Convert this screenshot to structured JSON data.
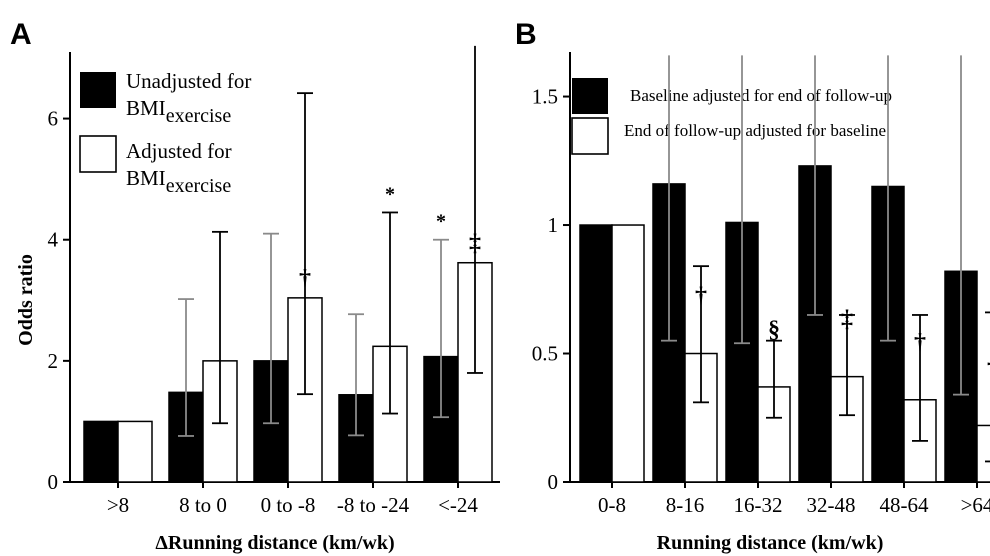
{
  "chart_data": [
    {
      "type": "bar",
      "panel_label": "A",
      "xlabel": "ΔRunning distance (km/wk)",
      "ylabel": "Odds ratio",
      "ylim": [
        0,
        7
      ],
      "yticks": [
        "0",
        "2",
        "4",
        "6"
      ],
      "categories": [
        ">8",
        "8 to 0",
        "0 to -8",
        "-8 to -24",
        "<-24"
      ],
      "legend": [
        {
          "main": "Unadjusted for",
          "base": "BMI",
          "sub": "exercise",
          "fill": "#000000"
        },
        {
          "main": "Adjusted for",
          "base": "BMI",
          "sub": "exercise",
          "fill": "#ffffff"
        }
      ],
      "series": [
        {
          "name": "Unadjusted for BMIexercise",
          "values": [
            1.0,
            1.48,
            2.0,
            1.44,
            2.07
          ],
          "ci_low": [
            null,
            0.76,
            0.97,
            0.77,
            1.07
          ],
          "ci_high": [
            null,
            3.02,
            4.1,
            2.77,
            4.0
          ],
          "marks": [
            "",
            "",
            "",
            "",
            "*"
          ]
        },
        {
          "name": "Adjusted for BMIexercise",
          "values": [
            1.0,
            2.0,
            3.04,
            2.24,
            3.62
          ],
          "ci_low": [
            null,
            0.97,
            1.45,
            1.13,
            1.8
          ],
          "ci_high": [
            null,
            4.13,
            6.42,
            4.45,
            7.2
          ],
          "marks": [
            "",
            "",
            "†",
            "*",
            "‡"
          ]
        }
      ]
    },
    {
      "type": "bar",
      "panel_label": "B",
      "xlabel": "Running distance (km/wk)",
      "ylabel": "",
      "ylim": [
        0,
        1.65
      ],
      "yticks": [
        "0",
        "0.5",
        "1",
        "1.5"
      ],
      "categories": [
        "0-8",
        "8-16",
        "16-32",
        "32-48",
        "48-64",
        ">64"
      ],
      "legend": [
        {
          "main": "Baseline adjusted for end of follow-up",
          "fill": "#000000"
        },
        {
          "main": "End of follow-up adjusted for baseline",
          "fill": "#ffffff"
        }
      ],
      "series": [
        {
          "name": "Baseline adjusted for end of follow-up",
          "values": [
            1.0,
            1.16,
            1.01,
            1.23,
            1.15,
            0.82
          ],
          "ci_low": [
            null,
            0.55,
            0.54,
            0.65,
            0.55,
            0.34
          ],
          "ci_high": [
            null,
            1.66,
            1.66,
            1.66,
            1.66,
            1.66
          ],
          "marks": [
            "",
            "",
            "",
            "",
            "",
            ""
          ]
        },
        {
          "name": "End of follow-up adjusted for baseline",
          "values": [
            1.0,
            0.5,
            0.37,
            0.41,
            0.32,
            0.22
          ],
          "ci_low": [
            null,
            0.31,
            0.25,
            0.26,
            0.16,
            0.08
          ],
          "ci_high": [
            null,
            0.84,
            0.55,
            0.65,
            0.65,
            0.66
          ],
          "marks": [
            "",
            "†",
            "§",
            "‡",
            "†",
            "†"
          ]
        }
      ]
    }
  ]
}
